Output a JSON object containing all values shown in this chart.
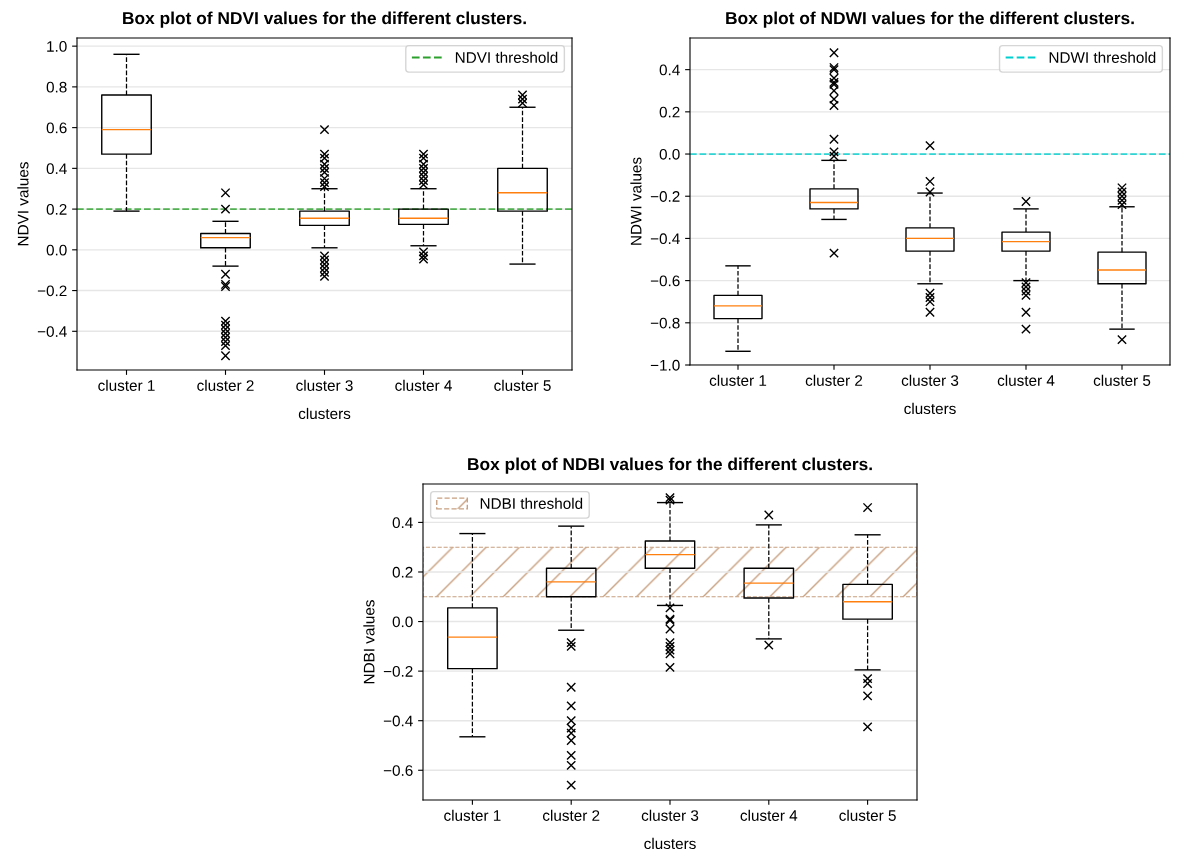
{
  "chart_data": [
    {
      "type": "box",
      "title": "Box plot of NDVI values for the different clusters.",
      "xlabel": "clusters",
      "ylabel": "NDVI values",
      "categories": [
        "cluster 1",
        "cluster 2",
        "cluster 3",
        "cluster 4",
        "cluster 5"
      ],
      "boxes": [
        {
          "low": 0.19,
          "q1": 0.47,
          "median": 0.59,
          "q3": 0.76,
          "high": 0.96
        },
        {
          "low": -0.08,
          "q1": 0.01,
          "median": 0.06,
          "q3": 0.08,
          "high": 0.14,
          "outliers": [
            0.28,
            0.2,
            -0.12,
            -0.17,
            -0.18,
            -0.35,
            -0.37,
            -0.39,
            -0.41,
            -0.43,
            -0.45,
            -0.47,
            -0.52
          ]
        },
        {
          "low": 0.01,
          "q1": 0.12,
          "median": 0.155,
          "q3": 0.19,
          "high": 0.3,
          "outliers": [
            0.59,
            0.47,
            0.45,
            0.42,
            0.4,
            0.38,
            0.35,
            0.33,
            0.31,
            -0.03,
            -0.05,
            -0.07,
            -0.09,
            -0.11,
            -0.13
          ]
        },
        {
          "low": 0.02,
          "q1": 0.125,
          "median": 0.155,
          "q3": 0.2,
          "high": 0.3,
          "outliers": [
            0.47,
            0.45,
            0.42,
            0.4,
            0.38,
            0.36,
            0.34,
            0.32,
            -0.01,
            -0.03,
            -0.045
          ]
        },
        {
          "low": -0.07,
          "q1": 0.19,
          "median": 0.28,
          "q3": 0.4,
          "high": 0.7,
          "outliers": [
            0.72,
            0.74,
            0.76
          ]
        }
      ],
      "ylim": [
        -0.59,
        1.04
      ],
      "yticks": [
        {
          "value": -0.4,
          "label": "−0.4"
        },
        {
          "value": -0.2,
          "label": "−0.2"
        },
        {
          "value": 0,
          "label": "0.0"
        },
        {
          "value": 0.2,
          "label": "0.2"
        },
        {
          "value": 0.4,
          "label": "0.4"
        },
        {
          "value": 0.6,
          "label": "0.6"
        },
        {
          "value": 0.8,
          "label": "0.8"
        },
        {
          "value": 1.0,
          "label": "1.0"
        }
      ],
      "ref_lines": [
        {
          "axis": "y",
          "value": 0.2,
          "label": "NDVI threshold",
          "color": "#2ca02c",
          "line_style": "dashed"
        }
      ],
      "grid": "y",
      "legend": "top right",
      "marker": "cross"
    },
    {
      "type": "box",
      "title": "Box plot of NDWI values for the different clusters.",
      "xlabel": "clusters",
      "ylabel": "NDWI values",
      "categories": [
        "cluster 1",
        "cluster 2",
        "cluster 3",
        "cluster 4",
        "cluster 5"
      ],
      "boxes": [
        {
          "low": -0.935,
          "q1": -0.78,
          "median": -0.72,
          "q3": -0.67,
          "high": -0.53
        },
        {
          "low": -0.31,
          "q1": -0.26,
          "median": -0.23,
          "q3": -0.165,
          "high": -0.03,
          "outliers": [
            0.48,
            0.41,
            0.4,
            0.36,
            0.34,
            0.33,
            0.3,
            0.26,
            0.23,
            0.07,
            0.01,
            -0.01,
            -0.47
          ]
        },
        {
          "low": -0.615,
          "q1": -0.46,
          "median": -0.4,
          "q3": -0.35,
          "high": -0.185,
          "outliers": [
            0.04,
            -0.13,
            -0.18,
            -0.66,
            -0.68,
            -0.7,
            -0.75
          ]
        },
        {
          "low": -0.6,
          "q1": -0.46,
          "median": -0.415,
          "q3": -0.37,
          "high": -0.26,
          "outliers": [
            -0.225,
            -0.61,
            -0.63,
            -0.65,
            -0.67,
            -0.75,
            -0.83
          ]
        },
        {
          "low": -0.83,
          "q1": -0.615,
          "median": -0.55,
          "q3": -0.465,
          "high": -0.25,
          "outliers": [
            -0.16,
            -0.18,
            -0.2,
            -0.22,
            -0.24,
            -0.88
          ]
        }
      ],
      "ylim": [
        -1.0,
        0.55
      ],
      "yticks": [
        {
          "value": -1.0,
          "label": "−1.0"
        },
        {
          "value": -0.8,
          "label": "−0.8"
        },
        {
          "value": -0.6,
          "label": "−0.6"
        },
        {
          "value": -0.4,
          "label": "−0.4"
        },
        {
          "value": -0.2,
          "label": "−0.2"
        },
        {
          "value": 0,
          "label": "0.0"
        },
        {
          "value": 0.2,
          "label": "0.2"
        },
        {
          "value": 0.4,
          "label": "0.4"
        }
      ],
      "ref_lines": [
        {
          "axis": "y",
          "value": 0,
          "label": "NDWI threshold",
          "color": "#00cfcf",
          "line_style": "dashed"
        }
      ],
      "grid": "y",
      "legend": "top right",
      "marker": "cross"
    },
    {
      "type": "box",
      "title": "Box plot of NDBI values for the different clusters.",
      "xlabel": "clusters",
      "ylabel": "NDBI values",
      "categories": [
        "cluster 1",
        "cluster 2",
        "cluster 3",
        "cluster 4",
        "cluster 5"
      ],
      "boxes": [
        {
          "low": -0.465,
          "q1": -0.19,
          "median": -0.063,
          "q3": 0.055,
          "high": 0.355
        },
        {
          "low": -0.035,
          "q1": 0.1,
          "median": 0.16,
          "q3": 0.215,
          "high": 0.385,
          "outliers": [
            -0.085,
            -0.1,
            -0.265,
            -0.34,
            -0.4,
            -0.43,
            -0.45,
            -0.48,
            -0.54,
            -0.58,
            -0.66
          ]
        },
        {
          "low": 0.065,
          "q1": 0.215,
          "median": 0.27,
          "q3": 0.325,
          "high": 0.48,
          "outliers": [
            0.5,
            0.49,
            0.055,
            0.01,
            0.005,
            -0.03,
            -0.085,
            -0.1,
            -0.115,
            -0.13,
            -0.185
          ]
        },
        {
          "low": -0.07,
          "q1": 0.095,
          "median": 0.155,
          "q3": 0.215,
          "high": 0.39,
          "outliers": [
            0.43,
            -0.095
          ]
        },
        {
          "low": -0.195,
          "q1": 0.01,
          "median": 0.08,
          "q3": 0.15,
          "high": 0.35,
          "outliers": [
            0.46,
            -0.23,
            -0.25,
            -0.3,
            -0.425
          ]
        }
      ],
      "ylim": [
        -0.72,
        0.555
      ],
      "yticks": [
        {
          "value": -0.6,
          "label": "−0.6"
        },
        {
          "value": -0.4,
          "label": "−0.4"
        },
        {
          "value": -0.2,
          "label": "−0.2"
        },
        {
          "value": 0,
          "label": "0.0"
        },
        {
          "value": 0.2,
          "label": "0.2"
        },
        {
          "value": 0.4,
          "label": "0.4"
        }
      ],
      "bands": [
        {
          "axis": "y",
          "from": 0.1,
          "to": 0.3,
          "label": "NDBI threshold",
          "color": "#c8a080"
        }
      ],
      "grid": "y",
      "legend": "top left",
      "marker": "cross"
    }
  ]
}
